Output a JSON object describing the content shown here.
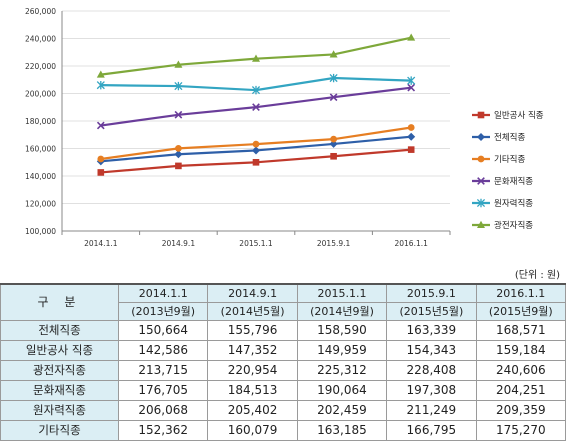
{
  "chart_data": {
    "type": "line",
    "title": "",
    "xlabel": "",
    "ylabel": "",
    "categories": [
      "2014.1.1",
      "2014.9.1",
      "2015.1.1",
      "2015.9.1",
      "2016.1.1"
    ],
    "ylim": [
      100000,
      260000
    ],
    "ytick_step": 20000,
    "yticks": [
      "100,000",
      "120,000",
      "140,000",
      "160,000",
      "180,000",
      "200,000",
      "220,000",
      "240,000",
      "260,000"
    ],
    "grid": true,
    "legend_position": "right",
    "series": [
      {
        "name": "일반공사 직종",
        "color": "#c0392b",
        "marker": "square",
        "values": [
          142586,
          147352,
          149959,
          154343,
          159184
        ]
      },
      {
        "name": "전체직종",
        "color": "#2e5fa8",
        "marker": "diamond",
        "values": [
          150664,
          155796,
          158590,
          163339,
          168571
        ]
      },
      {
        "name": "기타직종",
        "color": "#e67e22",
        "marker": "circle",
        "values": [
          152362,
          160079,
          163185,
          166795,
          175270
        ]
      },
      {
        "name": "문화재직종",
        "color": "#6a3d9a",
        "marker": "x",
        "values": [
          176705,
          184513,
          190064,
          197308,
          204251
        ]
      },
      {
        "name": "원자력직종",
        "color": "#33a5c2",
        "marker": "star",
        "values": [
          206068,
          205402,
          202459,
          211249,
          209359
        ]
      },
      {
        "name": "광전자직종",
        "color": "#7ea83a",
        "marker": "triangle",
        "values": [
          213715,
          220954,
          225312,
          228408,
          240606
        ]
      }
    ]
  },
  "table": {
    "unit_note": "(단위 : 원)",
    "corner_label": "구 분",
    "columns": [
      {
        "date": "2014.1.1",
        "sub": "(2013년9월)"
      },
      {
        "date": "2014.9.1",
        "sub": "(2014년5월)"
      },
      {
        "date": "2015.1.1",
        "sub": "(2014년9월)"
      },
      {
        "date": "2015.9.1",
        "sub": "(2015년5월)"
      },
      {
        "date": "2016.1.1",
        "sub": "(2015년9월)"
      }
    ],
    "rows": [
      {
        "label": "전체직종",
        "cells": [
          "150,664",
          "155,796",
          "158,590",
          "163,339",
          "168,571"
        ]
      },
      {
        "label": "일반공사 직종",
        "cells": [
          "142,586",
          "147,352",
          "149,959",
          "154,343",
          "159,184"
        ]
      },
      {
        "label": "광전자직종",
        "cells": [
          "213,715",
          "220,954",
          "225,312",
          "228,408",
          "240,606"
        ]
      },
      {
        "label": "문화재직종",
        "cells": [
          "176,705",
          "184,513",
          "190,064",
          "197,308",
          "204,251"
        ]
      },
      {
        "label": "원자력직종",
        "cells": [
          "206,068",
          "205,402",
          "202,459",
          "211,249",
          "209,359"
        ]
      },
      {
        "label": "기타직종",
        "cells": [
          "152,362",
          "160,079",
          "163,185",
          "166,795",
          "175,270"
        ]
      }
    ]
  }
}
